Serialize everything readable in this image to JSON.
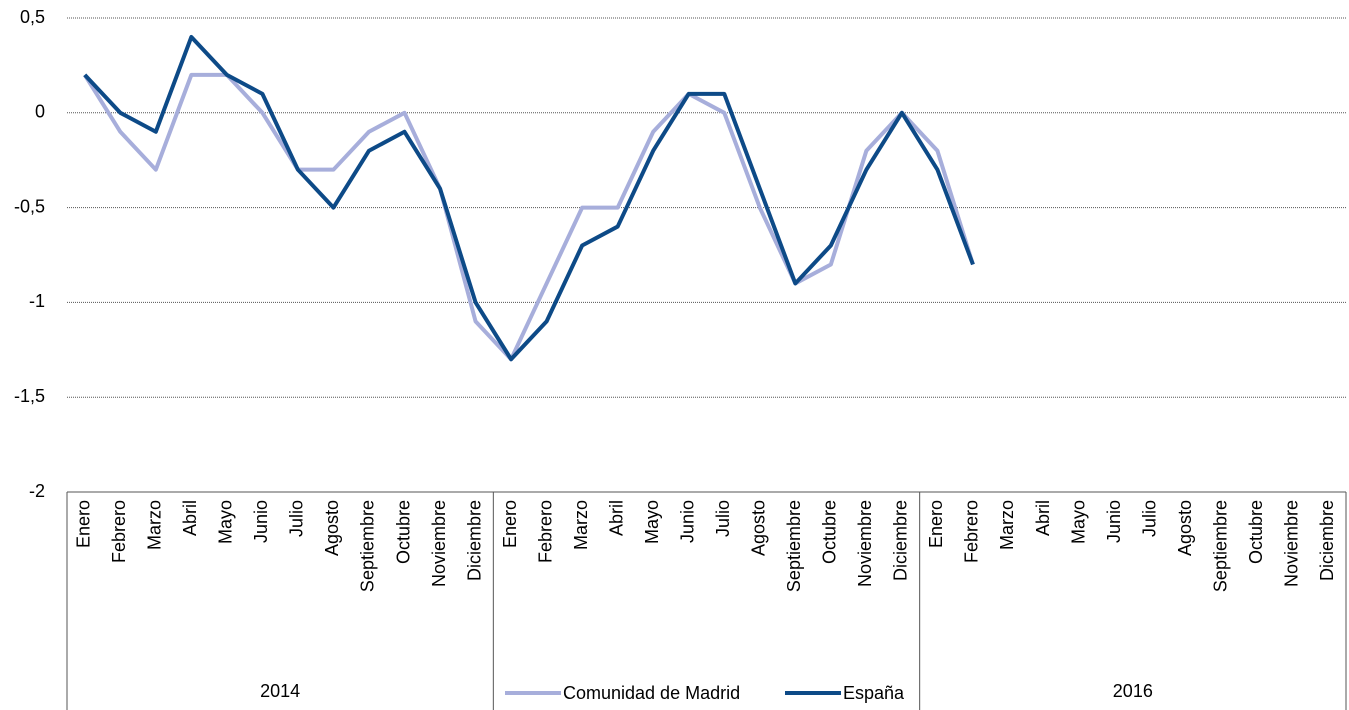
{
  "chart_data": {
    "type": "line",
    "categories": [
      "Enero",
      "Febrero",
      "Marzo",
      "Abril",
      "Mayo",
      "Junio",
      "Julio",
      "Agosto",
      "Septiembre",
      "Octubre",
      "Noviembre",
      "Diciembre",
      "Enero",
      "Febrero",
      "Marzo",
      "Abril",
      "Mayo",
      "Junio",
      "Julio",
      "Agosto",
      "Septiembre",
      "Octubre",
      "Noviembre",
      "Diciembre",
      "Enero",
      "Febrero",
      "Marzo",
      "Abril",
      "Mayo",
      "Junio",
      "Julio",
      "Agosto",
      "Septiembre",
      "Octubre",
      "Noviembre",
      "Diciembre"
    ],
    "groups": [
      "2014",
      null,
      "2016"
    ],
    "series": [
      {
        "name": "Comunidad de Madrid",
        "color": "#a7aedb",
        "values": [
          0.2,
          -0.1,
          -0.3,
          0.2,
          0.2,
          0.0,
          -0.3,
          -0.3,
          -0.1,
          0.0,
          -0.4,
          -1.1,
          -1.3,
          -0.9,
          -0.5,
          -0.5,
          -0.1,
          0.1,
          0.0,
          -0.5,
          -0.9,
          -0.8,
          -0.2,
          0.0,
          -0.2,
          -0.8,
          null,
          null,
          null,
          null,
          null,
          null,
          null,
          null,
          null,
          null
        ]
      },
      {
        "name": "España",
        "color": "#0d4a87",
        "values": [
          0.2,
          0.0,
          -0.1,
          0.4,
          0.2,
          0.1,
          -0.3,
          -0.5,
          -0.2,
          -0.1,
          -0.4,
          -1.0,
          -1.3,
          -1.1,
          -0.7,
          -0.6,
          -0.2,
          0.1,
          0.1,
          -0.4,
          -0.9,
          -0.7,
          -0.3,
          0.0,
          -0.3,
          -0.8,
          null,
          null,
          null,
          null,
          null,
          null,
          null,
          null,
          null,
          null
        ]
      }
    ],
    "ylim": [
      -2,
      0.5
    ],
    "yticks": [
      {
        "value": 0.5,
        "label": "0,5"
      },
      0,
      {
        "value": -0.5,
        "label": "-0,5"
      },
      -1,
      {
        "value": -1.5,
        "label": "-1,5"
      },
      -2
    ],
    "grid": true,
    "legend": "bottom"
  }
}
